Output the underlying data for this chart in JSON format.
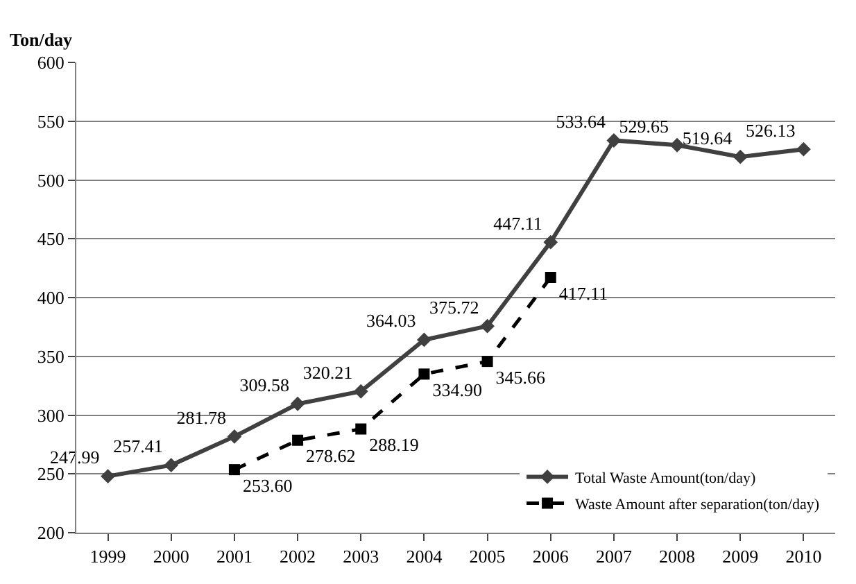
{
  "chart_data": {
    "type": "line",
    "ylabel": "Ton/day",
    "categories": [
      "1999",
      "2000",
      "2001",
      "2002",
      "2003",
      "2004",
      "2005",
      "2006",
      "2007",
      "2008",
      "2009",
      "2010"
    ],
    "series": [
      {
        "name": "Total Waste Amount(ton/day)",
        "color": "#404040",
        "marker": "diamond",
        "line_style": "solid",
        "values": [
          247.99,
          257.41,
          281.78,
          309.58,
          320.21,
          364.03,
          375.72,
          447.11,
          533.64,
          529.65,
          519.64,
          526.13
        ],
        "value_labels": [
          "247.99",
          "257.41",
          "281.78",
          "309.58",
          "320.21",
          "364.03",
          "375.72",
          "447.11",
          "533.64",
          "529.65",
          "519.64",
          "526.13"
        ]
      },
      {
        "name": "Waste Amount after separation(ton/day)",
        "color": "#000000",
        "marker": "square",
        "line_style": "dashed",
        "values": [
          null,
          null,
          253.6,
          278.62,
          288.19,
          334.9,
          345.66,
          417.11,
          null,
          null,
          null,
          null
        ],
        "value_labels": [
          null,
          null,
          "253.60",
          "278.62",
          "288.19",
          "334.90",
          "345.66",
          "417.11",
          null,
          null,
          null,
          null
        ]
      }
    ],
    "ylim": [
      200,
      600
    ],
    "yticks": [
      200,
      250,
      300,
      350,
      400,
      450,
      500,
      550,
      600
    ],
    "grid": "y",
    "legend": "bottom right"
  }
}
